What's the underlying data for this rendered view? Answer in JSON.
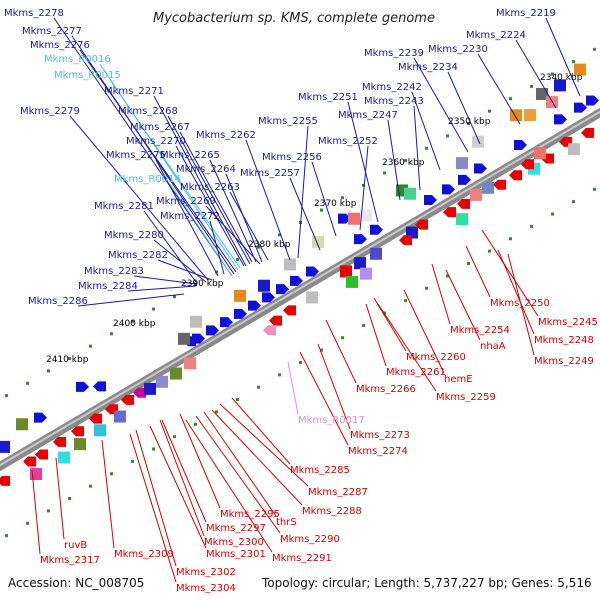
{
  "title": "Mycobacterium sp. KMS, complete genome",
  "accession": "Accession: NC_008705",
  "stats": "Topology: circular; Length: 5,737,227 bp; Genes: 5,516",
  "colors": {
    "forward_label": "#1a1aa6",
    "reverse_label": "#d40000",
    "rna_label": "#44c2e6",
    "rna_reverse_label": "#f08cc0",
    "backbone": "#7a7a7a",
    "tick": "#2e8b2e"
  },
  "ruler": [
    {
      "label": "2340 kbp"
    },
    {
      "label": "2350 kbp"
    },
    {
      "label": "2360 kbp"
    },
    {
      "label": "2370 kbp"
    },
    {
      "label": "2380 kbp"
    },
    {
      "label": "2390 kbp"
    },
    {
      "label": "2400 kbp"
    },
    {
      "label": "2410 kbp"
    }
  ],
  "forward_labels": [
    {
      "text": "Mkms_2278",
      "type": "gene"
    },
    {
      "text": "Mkms_2277",
      "type": "gene"
    },
    {
      "text": "Mkms_2276",
      "type": "gene"
    },
    {
      "text": "Mkms_R0016",
      "type": "rna"
    },
    {
      "text": "Mkms_R0015",
      "type": "rna"
    },
    {
      "text": "Mkms_2271",
      "type": "gene"
    },
    {
      "text": "Mkms_2279",
      "type": "gene"
    },
    {
      "text": "Mkms_2268",
      "type": "gene"
    },
    {
      "text": "Mkms_2267",
      "type": "gene"
    },
    {
      "text": "Mkms_2270",
      "type": "gene"
    },
    {
      "text": "Mkms_2262",
      "type": "gene"
    },
    {
      "text": "Mkms_2275",
      "type": "gene"
    },
    {
      "text": "Mkms_2265",
      "type": "gene"
    },
    {
      "text": "Mkms_2264",
      "type": "gene"
    },
    {
      "text": "Mkms_R0014",
      "type": "rna"
    },
    {
      "text": "Mkms_2263",
      "type": "gene"
    },
    {
      "text": "Mkms_2269",
      "type": "gene"
    },
    {
      "text": "Mkms_2281",
      "type": "gene"
    },
    {
      "text": "Mkms_2272",
      "type": "gene"
    },
    {
      "text": "Mkms_2280",
      "type": "gene"
    },
    {
      "text": "Mkms_2282",
      "type": "gene"
    },
    {
      "text": "Mkms_2283",
      "type": "gene"
    },
    {
      "text": "Mkms_2284",
      "type": "gene"
    },
    {
      "text": "Mkms_2286",
      "type": "gene"
    },
    {
      "text": "Mkms_2257",
      "type": "gene"
    },
    {
      "text": "Mkms_2256",
      "type": "gene"
    },
    {
      "text": "Mkms_2255",
      "type": "gene"
    },
    {
      "text": "Mkms_2252",
      "type": "gene"
    },
    {
      "text": "Mkms_2251",
      "type": "gene"
    },
    {
      "text": "Mkms_2247",
      "type": "gene"
    },
    {
      "text": "Mkms_2243",
      "type": "gene"
    },
    {
      "text": "Mkms_2242",
      "type": "gene"
    },
    {
      "text": "Mkms_2239",
      "type": "gene"
    },
    {
      "text": "Mkms_2234",
      "type": "gene"
    },
    {
      "text": "Mkms_2230",
      "type": "gene"
    },
    {
      "text": "Mkms_2224",
      "type": "gene"
    },
    {
      "text": "Mkms_2219",
      "type": "gene"
    }
  ],
  "reverse_labels": [
    {
      "text": "Mkms_2250",
      "type": "gene"
    },
    {
      "text": "Mkms_2245",
      "type": "gene"
    },
    {
      "text": "Mkms_2254",
      "type": "gene"
    },
    {
      "text": "Mkms_2248",
      "type": "gene"
    },
    {
      "text": "nhaA",
      "type": "gene"
    },
    {
      "text": "Mkms_2249",
      "type": "gene"
    },
    {
      "text": "Mkms_2260",
      "type": "gene"
    },
    {
      "text": "Mkms_2261",
      "type": "gene"
    },
    {
      "text": "hemE",
      "type": "gene"
    },
    {
      "text": "Mkms_2266",
      "type": "gene"
    },
    {
      "text": "Mkms_2259",
      "type": "gene"
    },
    {
      "text": "Mkms_R0017",
      "type": "rna"
    },
    {
      "text": "Mkms_2273",
      "type": "gene"
    },
    {
      "text": "Mkms_2274",
      "type": "gene"
    },
    {
      "text": "Mkms_2285",
      "type": "gene"
    },
    {
      "text": "Mkms_2287",
      "type": "gene"
    },
    {
      "text": "Mkms_2288",
      "type": "gene"
    },
    {
      "text": "Mkms_2295",
      "type": "gene"
    },
    {
      "text": "thrS",
      "type": "gene"
    },
    {
      "text": "Mkms_2297",
      "type": "gene"
    },
    {
      "text": "Mkms_2290",
      "type": "gene"
    },
    {
      "text": "Mkms_2300",
      "type": "gene"
    },
    {
      "text": "ruvB",
      "type": "gene"
    },
    {
      "text": "Mkms_2309",
      "type": "gene"
    },
    {
      "text": "Mkms_2301",
      "type": "gene"
    },
    {
      "text": "Mkms_2291",
      "type": "gene"
    },
    {
      "text": "Mkms_2317",
      "type": "gene"
    },
    {
      "text": "Mkms_2302",
      "type": "gene"
    },
    {
      "text": "Mkms_2304",
      "type": "gene"
    }
  ]
}
